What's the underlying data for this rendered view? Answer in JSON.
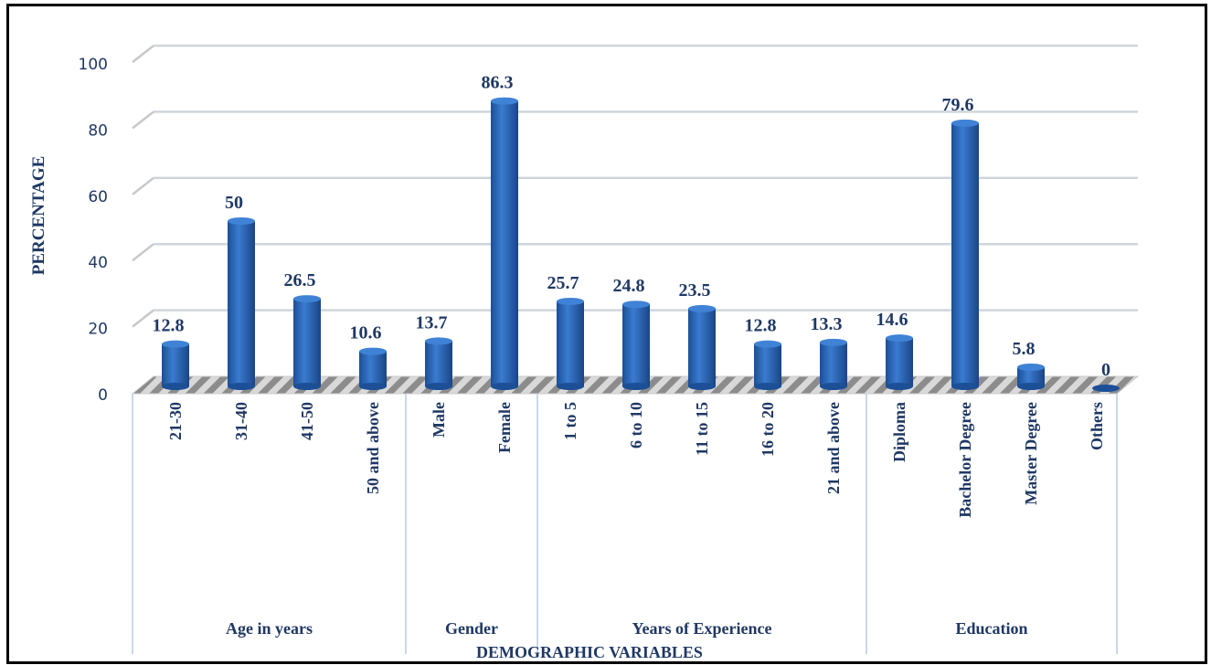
{
  "chart_data": {
    "type": "bar",
    "style": "3d-cylinder",
    "title": "",
    "xlabel": "DEMOGRAPHIC VARIABLES",
    "ylabel": "PERCENTAGE",
    "ylim": [
      0,
      100
    ],
    "yticks": [
      "0",
      "20",
      "40",
      "60",
      "80",
      "100"
    ],
    "grid": true,
    "bar_color": "#2e6bc0",
    "text_color": "#1f3864",
    "groups": [
      {
        "name": "Age in years",
        "categories": [
          "21-30",
          "31-40",
          "41-50",
          "50 and above"
        ],
        "values": [
          12.8,
          50,
          26.5,
          10.6
        ],
        "labels": [
          "12.8",
          "50",
          "26.5",
          "10.6"
        ]
      },
      {
        "name": "Gender",
        "categories": [
          "Male",
          "Female"
        ],
        "values": [
          13.7,
          86.3
        ],
        "labels": [
          "13.7",
          "86.3"
        ]
      },
      {
        "name": "Years of Experience",
        "categories": [
          "1 to 5",
          "6 to 10",
          "11 to 15",
          "16 to 20",
          "21 and above"
        ],
        "values": [
          25.7,
          24.8,
          23.5,
          12.8,
          13.3
        ],
        "labels": [
          "25.7",
          "24.8",
          "23.5",
          "12.8",
          "13.3"
        ]
      },
      {
        "name": "Education",
        "categories": [
          "Diploma",
          "Bachelor Degree",
          "Master Degree",
          "Others"
        ],
        "values": [
          14.6,
          79.6,
          5.8,
          0
        ],
        "labels": [
          "14.6",
          "79.6",
          "5.8",
          "0"
        ]
      }
    ]
  }
}
